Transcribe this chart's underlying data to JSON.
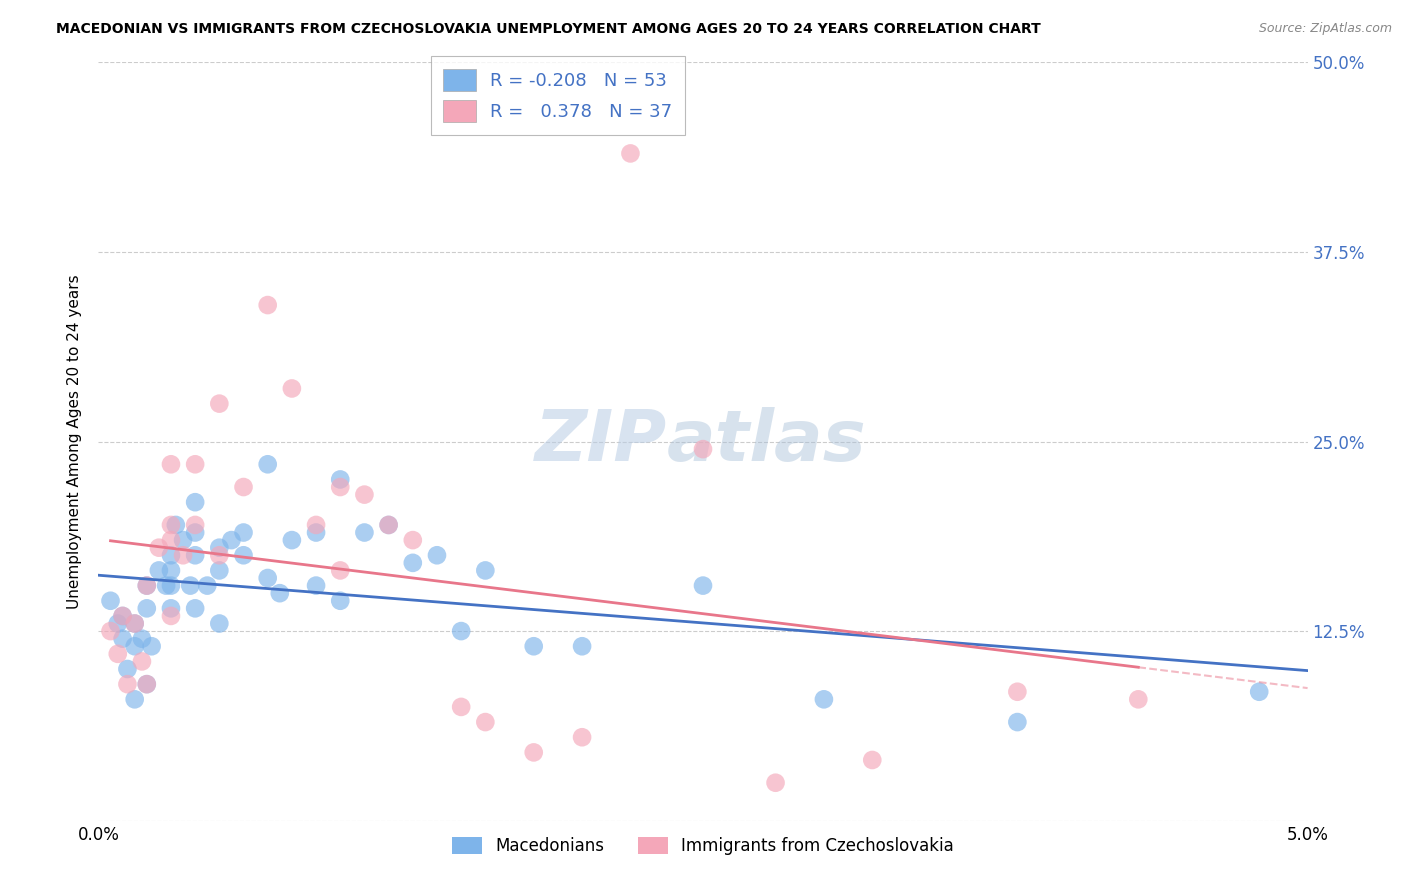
{
  "title": "MACEDONIAN VS IMMIGRANTS FROM CZECHOSLOVAKIA UNEMPLOYMENT AMONG AGES 20 TO 24 YEARS CORRELATION CHART",
  "source": "Source: ZipAtlas.com",
  "ylabel": "Unemployment Among Ages 20 to 24 years",
  "xlabel_macedonian": "Macedonians",
  "xlabel_immigrant": "Immigrants from Czechoslovakia",
  "watermark_zip": "ZIP",
  "watermark_atlas": "atlas",
  "xlim": [
    0.0,
    0.05
  ],
  "ylim": [
    0.0,
    0.5
  ],
  "xticks": [
    0.0,
    0.01,
    0.02,
    0.03,
    0.04,
    0.05
  ],
  "yticks": [
    0.0,
    0.125,
    0.25,
    0.375,
    0.5
  ],
  "ytick_labels_right": [
    "",
    "12.5%",
    "25.0%",
    "37.5%",
    "50.0%"
  ],
  "xtick_labels": [
    "0.0%",
    "",
    "",
    "",
    "",
    "5.0%"
  ],
  "r_macedonian": -0.208,
  "n_macedonian": 53,
  "r_immigrant": 0.378,
  "n_immigrant": 37,
  "color_macedonian": "#7EB4EA",
  "color_immigrant": "#F4A7B9",
  "line_color_macedonian": "#4472C4",
  "line_color_immigrant": "#E8768A",
  "macedonian_x": [
    0.0005,
    0.0008,
    0.001,
    0.001,
    0.0012,
    0.0015,
    0.0015,
    0.0015,
    0.0018,
    0.002,
    0.002,
    0.002,
    0.0022,
    0.0025,
    0.0028,
    0.003,
    0.003,
    0.003,
    0.003,
    0.0032,
    0.0035,
    0.0038,
    0.004,
    0.004,
    0.004,
    0.004,
    0.0045,
    0.005,
    0.005,
    0.005,
    0.0055,
    0.006,
    0.006,
    0.007,
    0.007,
    0.0075,
    0.008,
    0.009,
    0.009,
    0.01,
    0.01,
    0.011,
    0.012,
    0.013,
    0.014,
    0.015,
    0.016,
    0.018,
    0.02,
    0.025,
    0.03,
    0.038,
    0.048
  ],
  "macedonian_y": [
    0.145,
    0.13,
    0.12,
    0.135,
    0.1,
    0.13,
    0.115,
    0.08,
    0.12,
    0.155,
    0.14,
    0.09,
    0.115,
    0.165,
    0.155,
    0.175,
    0.165,
    0.155,
    0.14,
    0.195,
    0.185,
    0.155,
    0.21,
    0.19,
    0.175,
    0.14,
    0.155,
    0.18,
    0.165,
    0.13,
    0.185,
    0.19,
    0.175,
    0.235,
    0.16,
    0.15,
    0.185,
    0.19,
    0.155,
    0.225,
    0.145,
    0.19,
    0.195,
    0.17,
    0.175,
    0.125,
    0.165,
    0.115,
    0.115,
    0.155,
    0.08,
    0.065,
    0.085
  ],
  "immigrant_x": [
    0.0005,
    0.0008,
    0.001,
    0.0012,
    0.0015,
    0.0018,
    0.002,
    0.002,
    0.0025,
    0.003,
    0.003,
    0.003,
    0.003,
    0.0035,
    0.004,
    0.004,
    0.005,
    0.005,
    0.006,
    0.007,
    0.008,
    0.009,
    0.01,
    0.01,
    0.011,
    0.012,
    0.013,
    0.015,
    0.016,
    0.018,
    0.02,
    0.022,
    0.025,
    0.028,
    0.032,
    0.038,
    0.043
  ],
  "immigrant_y": [
    0.125,
    0.11,
    0.135,
    0.09,
    0.13,
    0.105,
    0.155,
    0.09,
    0.18,
    0.235,
    0.195,
    0.185,
    0.135,
    0.175,
    0.235,
    0.195,
    0.275,
    0.175,
    0.22,
    0.34,
    0.285,
    0.195,
    0.22,
    0.165,
    0.215,
    0.195,
    0.185,
    0.075,
    0.065,
    0.045,
    0.055,
    0.44,
    0.245,
    0.025,
    0.04,
    0.085,
    0.08
  ]
}
